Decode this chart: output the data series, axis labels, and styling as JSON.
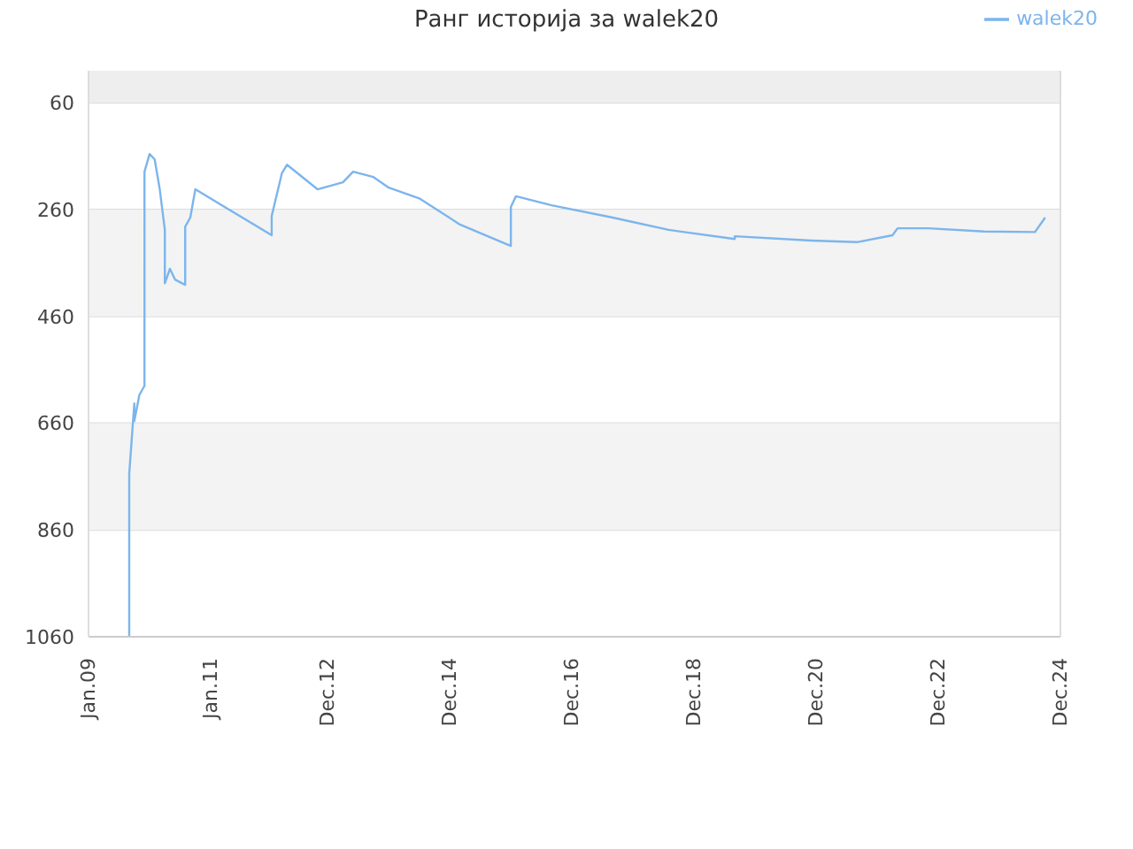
{
  "chart_data": {
    "type": "line",
    "title": "Ранг историја за walek20",
    "x": [
      "2009-09",
      "2009-09",
      "2009-09",
      "2009-10",
      "2009-10",
      "2009-11",
      "2009-12",
      "2009-12",
      "2009-12",
      "2010-01",
      "2010-02",
      "2010-03",
      "2010-04",
      "2010-04",
      "2010-04",
      "2010-05",
      "2010-06",
      "2010-08",
      "2010-08",
      "2010-09",
      "2010-10",
      "2012-01",
      "2012-01",
      "2012-02",
      "2012-03",
      "2012-04",
      "2012-10",
      "2013-03",
      "2013-05",
      "2013-09",
      "2013-12",
      "2014-06",
      "2015-02",
      "2015-12",
      "2015-12",
      "2016-01",
      "2016-08",
      "2017-08",
      "2018-07",
      "2019-08",
      "2019-08",
      "2020-11",
      "2021-08",
      "2022-03",
      "2022-04",
      "2022-10",
      "2023-09",
      "2024-07",
      "2024-09"
    ],
    "series": [
      {
        "name": "walek20",
        "color": "#7cb5ec",
        "values": [
          1060,
          871,
          755,
          623,
          656,
          607,
          590,
          540,
          189,
          156,
          166,
          222,
          298,
          375,
          398,
          371,
          391,
          401,
          292,
          275,
          222,
          308,
          272,
          232,
          192,
          176,
          222,
          209,
          189,
          199,
          219,
          239,
          288,
          328,
          255,
          235,
          252,
          275,
          298,
          315,
          310,
          318,
          321,
          308,
          295,
          295,
          301,
          302,
          275
        ]
      }
    ],
    "ylim": [
      1060,
      0
    ],
    "yticks": [
      60,
      260,
      460,
      660,
      860,
      1060
    ],
    "xlim": [
      "2009-01",
      "2024-12"
    ],
    "xticks": [
      {
        "value": "2009-01",
        "label": "Jan.09"
      },
      {
        "value": "2011-01",
        "label": "Jan.11"
      },
      {
        "value": "2012-12",
        "label": "Dec.12"
      },
      {
        "value": "2014-12",
        "label": "Dec.14"
      },
      {
        "value": "2016-12",
        "label": "Dec.16"
      },
      {
        "value": "2018-12",
        "label": "Dec.18"
      },
      {
        "value": "2020-12",
        "label": "Dec.20"
      },
      {
        "value": "2022-12",
        "label": "Dec.22"
      },
      {
        "value": "2024-12",
        "label": "Dec.24"
      }
    ],
    "bands": [
      {
        "axis": "y",
        "from": 0,
        "to": 60,
        "color": "#eeeeee"
      },
      {
        "axis": "y",
        "from": 260,
        "to": 460,
        "color": "#f3f3f3"
      },
      {
        "axis": "y",
        "from": 660,
        "to": 860,
        "color": "#f3f3f3"
      }
    ],
    "grid": "y",
    "legend": "top right",
    "marker": "none",
    "line_style": "solid"
  }
}
